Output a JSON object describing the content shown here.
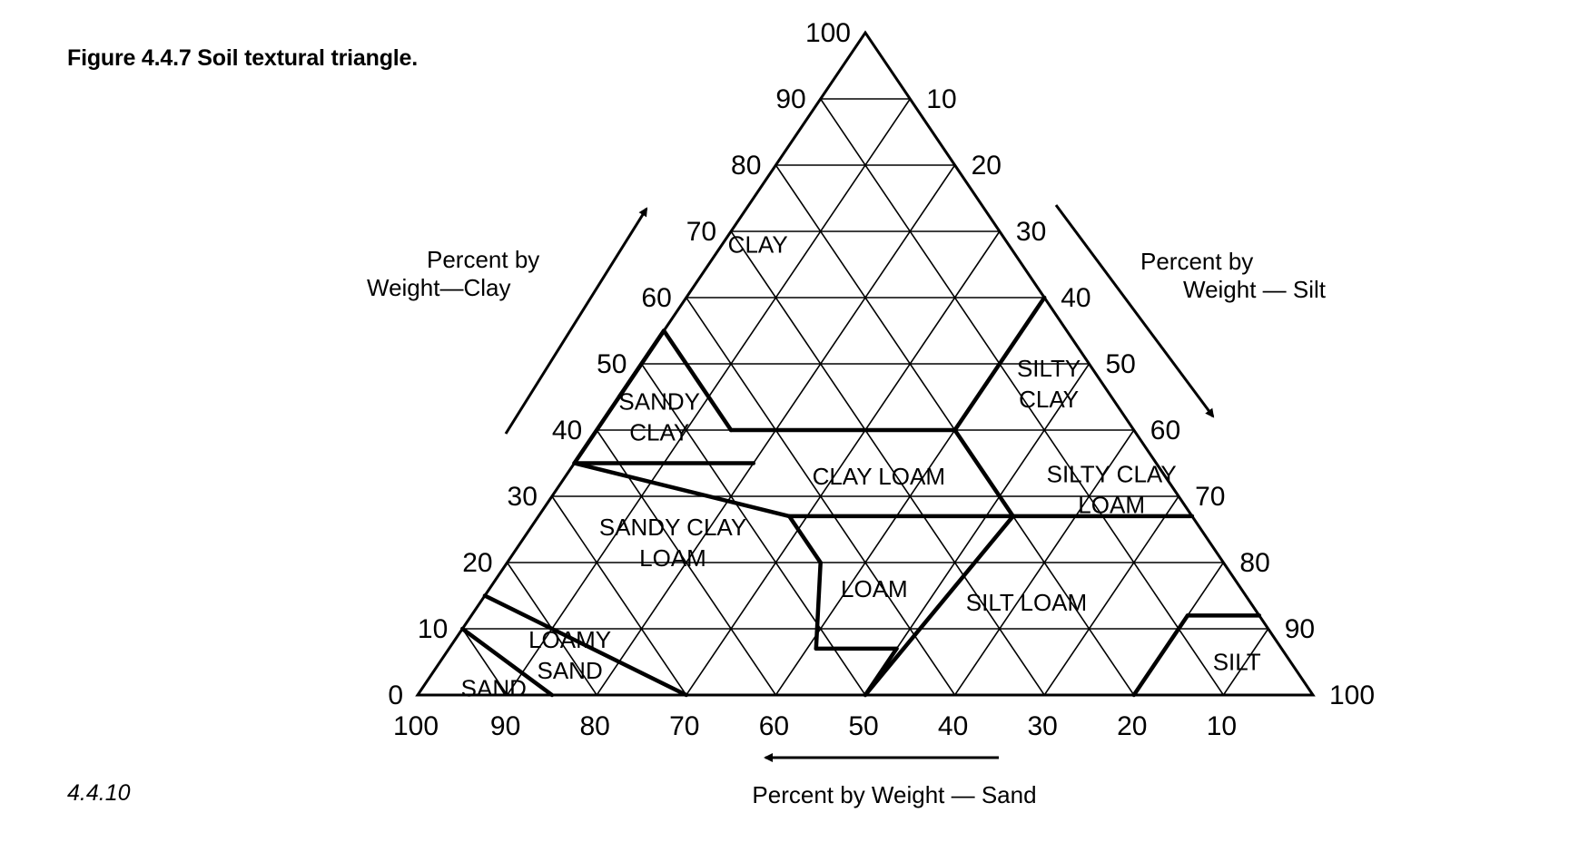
{
  "caption": "Figure 4.4.7 Soil textural triangle.",
  "page_number": "4.4.10",
  "axes": {
    "clay": {
      "label_line1": "Percent by",
      "label_line2": "Weight—Clay",
      "ticks": [
        "0",
        "10",
        "20",
        "30",
        "40",
        "50",
        "60",
        "70",
        "80",
        "90",
        "100"
      ]
    },
    "silt": {
      "label_line1": "Percent by",
      "label_line2": "Weight — Silt",
      "ticks": [
        "10",
        "20",
        "30",
        "40",
        "50",
        "60",
        "70",
        "80",
        "90",
        "100"
      ]
    },
    "sand": {
      "label": "Percent by Weight — Sand",
      "ticks": [
        "100",
        "90",
        "80",
        "70",
        "60",
        "50",
        "40",
        "30",
        "20",
        "10"
      ]
    }
  },
  "classes": [
    {
      "id": "clay",
      "lines": [
        "CLAY"
      ],
      "sand": 28,
      "clay": 68
    },
    {
      "id": "silty-clay",
      "lines": [
        "SILTY",
        "CLAY"
      ],
      "sand": 6,
      "clay": 47
    },
    {
      "id": "sandy-clay",
      "lines": [
        "SANDY",
        "CLAY"
      ],
      "sand": 52,
      "clay": 42
    },
    {
      "id": "clay-loam",
      "lines": [
        "CLAY LOAM"
      ],
      "sand": 32,
      "clay": 33
    },
    {
      "id": "silty-clay-loam",
      "lines": [
        "SILTY CLAY",
        "LOAM"
      ],
      "sand": 7,
      "clay": 31
    },
    {
      "id": "sandy-clay-loam",
      "lines": [
        "SANDY CLAY",
        "LOAM"
      ],
      "sand": 60,
      "clay": 23
    },
    {
      "id": "loam",
      "lines": [
        "LOAM"
      ],
      "sand": 41,
      "clay": 16
    },
    {
      "id": "silt-loam",
      "lines": [
        "SILT LOAM"
      ],
      "sand": 25,
      "clay": 14
    },
    {
      "id": "silt",
      "lines": [
        "SILT"
      ],
      "sand": 6,
      "clay": 5
    },
    {
      "id": "loamy-sand",
      "lines": [
        "LOAMY",
        "SAND"
      ],
      "sand": 80,
      "clay": 6
    },
    {
      "id": "sand",
      "lines": [
        "SAND"
      ],
      "sand": 91,
      "clay": 1
    }
  ],
  "boundaries": [
    [
      [
        55,
        45
      ],
      [
        45,
        55
      ]
    ],
    [
      [
        65,
        35
      ],
      [
        45,
        55
      ]
    ],
    [
      [
        65,
        35
      ],
      [
        45,
        35
      ]
    ],
    [
      [
        45,
        55
      ],
      [
        45,
        40
      ]
    ],
    [
      [
        45,
        40
      ],
      [
        20,
        40
      ]
    ],
    [
      [
        20,
        40
      ],
      [
        0,
        60
      ]
    ],
    [
      [
        20,
        40
      ],
      [
        20,
        27
      ]
    ],
    [
      [
        65,
        35
      ],
      [
        45,
        27
      ]
    ],
    [
      [
        45,
        27
      ],
      [
        45,
        20
      ]
    ],
    [
      [
        45,
        27
      ],
      [
        0,
        27
      ]
    ],
    [
      [
        45,
        20
      ],
      [
        52,
        7
      ]
    ],
    [
      [
        52,
        7
      ],
      [
        43,
        7
      ]
    ],
    [
      [
        43,
        7
      ],
      [
        50,
        0
      ]
    ],
    [
      [
        20,
        27
      ],
      [
        50,
        0
      ]
    ],
    [
      [
        20,
        0
      ],
      [
        8,
        12
      ]
    ],
    [
      [
        8,
        12
      ],
      [
        0,
        12
      ]
    ],
    [
      [
        85,
        15
      ],
      [
        70,
        0
      ]
    ],
    [
      [
        90,
        10
      ],
      [
        85,
        0
      ]
    ]
  ],
  "colors": {
    "line": "#000000",
    "background": "#ffffff"
  }
}
